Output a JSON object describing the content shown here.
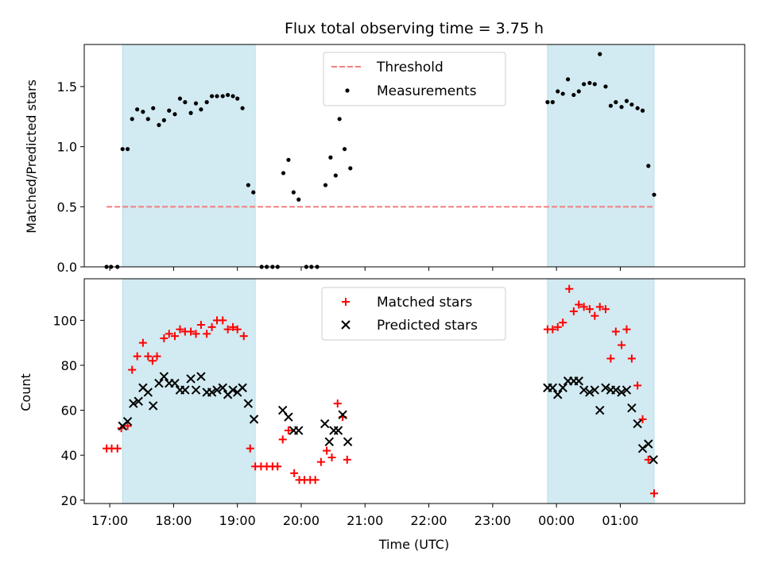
{
  "chart_data": [
    {
      "type": "scatter",
      "title": "Flux total observing time = 3.75 h",
      "ylabel": "Matched/Predicted stars",
      "ylim": [
        0,
        1.85
      ],
      "xlim": [
        16.6,
        26.95
      ],
      "yticks": [
        0.0,
        0.5,
        1.0,
        1.5
      ],
      "ytick_labels": [
        "0.0",
        "0.5",
        "1.0",
        "1.5"
      ],
      "shaded_spans": [
        [
          17.2,
          19.28
        ],
        [
          23.86,
          25.53
        ]
      ],
      "shade_color": "#add8e6",
      "threshold": {
        "name": "Threshold",
        "value": 0.5,
        "x_range": [
          16.95,
          25.53
        ],
        "color": "#f07f7f",
        "style": "dashed"
      },
      "legend": {
        "position": "upper center",
        "entries": [
          "Threshold",
          "Measurements"
        ]
      },
      "series": [
        {
          "name": "Measurements",
          "color": "#000000",
          "marker": "dot",
          "points": [
            [
              16.95,
              0.0
            ],
            [
              17.02,
              0.0
            ],
            [
              17.12,
              0.0
            ],
            [
              17.2,
              0.98
            ],
            [
              17.28,
              0.98
            ],
            [
              17.35,
              1.23
            ],
            [
              17.43,
              1.31
            ],
            [
              17.52,
              1.29
            ],
            [
              17.6,
              1.23
            ],
            [
              17.68,
              1.32
            ],
            [
              17.77,
              1.18
            ],
            [
              17.85,
              1.22
            ],
            [
              17.93,
              1.3
            ],
            [
              18.02,
              1.27
            ],
            [
              18.1,
              1.4
            ],
            [
              18.18,
              1.37
            ],
            [
              18.27,
              1.28
            ],
            [
              18.35,
              1.36
            ],
            [
              18.43,
              1.31
            ],
            [
              18.52,
              1.37
            ],
            [
              18.6,
              1.42
            ],
            [
              18.68,
              1.42
            ],
            [
              18.77,
              1.42
            ],
            [
              18.85,
              1.43
            ],
            [
              18.93,
              1.42
            ],
            [
              19.0,
              1.4
            ],
            [
              19.08,
              1.32
            ],
            [
              19.17,
              0.68
            ],
            [
              19.25,
              0.62
            ],
            [
              19.38,
              0.0
            ],
            [
              19.46,
              0.0
            ],
            [
              19.55,
              0.0
            ],
            [
              19.63,
              0.0
            ],
            [
              19.72,
              0.78
            ],
            [
              19.8,
              0.89
            ],
            [
              19.88,
              0.62
            ],
            [
              19.96,
              0.56
            ],
            [
              20.08,
              0.0
            ],
            [
              20.16,
              0.0
            ],
            [
              20.25,
              0.0
            ],
            [
              20.38,
              0.68
            ],
            [
              20.46,
              0.91
            ],
            [
              20.54,
              0.76
            ],
            [
              20.6,
              1.23
            ],
            [
              20.68,
              0.98
            ],
            [
              20.77,
              0.82
            ],
            [
              23.86,
              1.37
            ],
            [
              23.94,
              1.37
            ],
            [
              24.02,
              1.46
            ],
            [
              24.1,
              1.44
            ],
            [
              24.18,
              1.56
            ],
            [
              24.27,
              1.43
            ],
            [
              24.35,
              1.46
            ],
            [
              24.43,
              1.52
            ],
            [
              24.52,
              1.53
            ],
            [
              24.6,
              1.52
            ],
            [
              24.68,
              1.77
            ],
            [
              24.77,
              1.5
            ],
            [
              24.85,
              1.34
            ],
            [
              24.93,
              1.37
            ],
            [
              25.02,
              1.33
            ],
            [
              25.1,
              1.38
            ],
            [
              25.18,
              1.35
            ],
            [
              25.27,
              1.32
            ],
            [
              25.35,
              1.3
            ],
            [
              25.44,
              0.84
            ],
            [
              25.53,
              0.6
            ]
          ]
        }
      ]
    },
    {
      "type": "scatter",
      "xlabel": "Time (UTC)",
      "ylabel": "Count",
      "ylim": [
        18.5,
        118.5
      ],
      "xlim": [
        16.6,
        26.95
      ],
      "yticks": [
        20,
        40,
        60,
        80,
        100
      ],
      "ytick_labels": [
        "20",
        "40",
        "60",
        "80",
        "100"
      ],
      "xticks": [
        17,
        18,
        19,
        20,
        21,
        22,
        23,
        24,
        25
      ],
      "xtick_labels": [
        "17:00",
        "18:00",
        "19:00",
        "20:00",
        "21:00",
        "22:00",
        "23:00",
        "00:00",
        "01:00"
      ],
      "shaded_spans": [
        [
          17.2,
          19.28
        ],
        [
          23.86,
          25.53
        ]
      ],
      "shade_color": "#add8e6",
      "legend": {
        "position": "upper center",
        "entries": [
          "Matched stars",
          "Predicted stars"
        ]
      },
      "series": [
        {
          "name": "Matched stars",
          "color": "#ff0000",
          "marker": "plus",
          "points": [
            [
              16.95,
              43
            ],
            [
              17.03,
              43
            ],
            [
              17.12,
              43
            ],
            [
              17.18,
              52
            ],
            [
              17.28,
              53
            ],
            [
              17.35,
              78
            ],
            [
              17.43,
              84
            ],
            [
              17.52,
              90
            ],
            [
              17.6,
              84
            ],
            [
              17.67,
              82
            ],
            [
              17.74,
              84
            ],
            [
              17.85,
              92
            ],
            [
              17.93,
              94
            ],
            [
              18.02,
              93
            ],
            [
              18.1,
              96
            ],
            [
              18.18,
              95
            ],
            [
              18.27,
              95
            ],
            [
              18.35,
              94
            ],
            [
              18.43,
              98
            ],
            [
              18.52,
              94
            ],
            [
              18.6,
              97
            ],
            [
              18.68,
              100
            ],
            [
              18.77,
              100
            ],
            [
              18.85,
              96
            ],
            [
              18.93,
              97
            ],
            [
              19.0,
              96
            ],
            [
              19.1,
              93
            ],
            [
              19.2,
              43
            ],
            [
              19.28,
              35
            ],
            [
              19.37,
              35
            ],
            [
              19.46,
              35
            ],
            [
              19.55,
              35
            ],
            [
              19.63,
              35
            ],
            [
              19.71,
              47
            ],
            [
              19.8,
              51
            ],
            [
              19.89,
              32
            ],
            [
              19.97,
              29
            ],
            [
              20.05,
              29
            ],
            [
              20.14,
              29
            ],
            [
              20.22,
              29
            ],
            [
              20.31,
              37
            ],
            [
              20.4,
              42
            ],
            [
              20.48,
              39
            ],
            [
              20.57,
              63
            ],
            [
              20.65,
              57
            ],
            [
              20.72,
              38
            ],
            [
              23.86,
              96
            ],
            [
              23.94,
              96
            ],
            [
              24.02,
              97
            ],
            [
              24.1,
              99
            ],
            [
              24.2,
              114
            ],
            [
              24.27,
              104
            ],
            [
              24.35,
              107
            ],
            [
              24.43,
              106
            ],
            [
              24.52,
              105
            ],
            [
              24.6,
              102
            ],
            [
              24.68,
              106
            ],
            [
              24.77,
              105
            ],
            [
              24.85,
              83
            ],
            [
              24.93,
              95
            ],
            [
              25.02,
              89
            ],
            [
              25.1,
              96
            ],
            [
              25.18,
              83
            ],
            [
              25.27,
              71
            ],
            [
              25.35,
              56
            ],
            [
              25.44,
              38
            ],
            [
              25.53,
              23
            ]
          ]
        },
        {
          "name": "Predicted stars",
          "color": "#000000",
          "marker": "x",
          "points": [
            [
              17.2,
              53
            ],
            [
              17.28,
              55
            ],
            [
              17.37,
              63
            ],
            [
              17.45,
              64
            ],
            [
              17.52,
              70
            ],
            [
              17.6,
              68
            ],
            [
              17.68,
              62
            ],
            [
              17.77,
              72
            ],
            [
              17.85,
              75
            ],
            [
              17.93,
              72
            ],
            [
              18.02,
              72
            ],
            [
              18.1,
              69
            ],
            [
              18.18,
              69
            ],
            [
              18.27,
              74
            ],
            [
              18.35,
              69
            ],
            [
              18.43,
              75
            ],
            [
              18.52,
              68
            ],
            [
              18.6,
              68
            ],
            [
              18.68,
              69
            ],
            [
              18.77,
              70
            ],
            [
              18.85,
              67
            ],
            [
              18.93,
              69
            ],
            [
              19.0,
              68
            ],
            [
              19.08,
              70
            ],
            [
              19.17,
              63
            ],
            [
              19.26,
              56
            ],
            [
              19.71,
              60
            ],
            [
              19.8,
              57
            ],
            [
              19.88,
              51
            ],
            [
              19.96,
              51
            ],
            [
              20.37,
              54
            ],
            [
              20.44,
              46
            ],
            [
              20.51,
              51
            ],
            [
              20.58,
              51
            ],
            [
              20.65,
              58
            ],
            [
              20.73,
              46
            ],
            [
              23.86,
              70
            ],
            [
              23.94,
              70
            ],
            [
              24.02,
              67
            ],
            [
              24.1,
              70
            ],
            [
              24.18,
              73
            ],
            [
              24.27,
              73
            ],
            [
              24.35,
              73
            ],
            [
              24.43,
              69
            ],
            [
              24.52,
              68
            ],
            [
              24.6,
              69
            ],
            [
              24.68,
              60
            ],
            [
              24.77,
              70
            ],
            [
              24.85,
              69
            ],
            [
              24.93,
              69
            ],
            [
              25.02,
              68
            ],
            [
              25.1,
              69
            ],
            [
              25.18,
              61
            ],
            [
              25.27,
              54
            ],
            [
              25.35,
              43
            ],
            [
              25.44,
              45
            ],
            [
              25.52,
              38
            ]
          ]
        }
      ]
    }
  ]
}
